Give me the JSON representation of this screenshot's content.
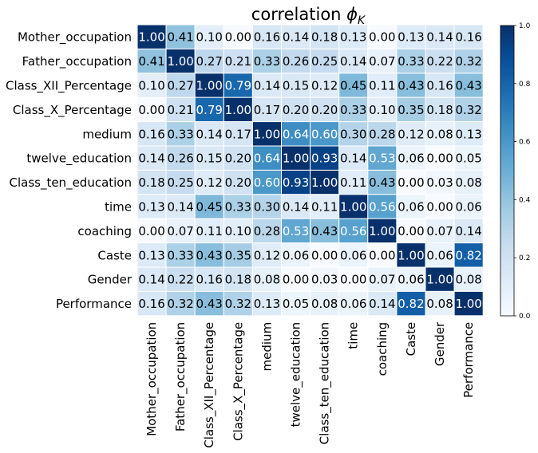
{
  "chart_data": {
    "type": "heatmap",
    "title_main": "correlation ",
    "title_symbol": "ϕ",
    "title_subscript": "K",
    "row_labels": [
      "Mother_occupation",
      "Father_occupation",
      "Class_XII_Percentage",
      "Class_X_Percentage",
      "medium",
      "twelve_education",
      "Class_ten_education",
      "time",
      "coaching",
      "Caste",
      "Gender",
      "Performance"
    ],
    "col_labels": [
      "Mother_occupation",
      "Father_occupation",
      "Class_XII_Percentage",
      "Class_X_Percentage",
      "medium",
      "twelve_education",
      "Class_ten_education",
      "time",
      "coaching",
      "Caste",
      "Gender",
      "Performance"
    ],
    "values": [
      [
        1.0,
        0.41,
        0.1,
        0.0,
        0.16,
        0.14,
        0.18,
        0.13,
        0.0,
        0.13,
        0.14,
        0.16
      ],
      [
        0.41,
        1.0,
        0.27,
        0.21,
        0.33,
        0.26,
        0.25,
        0.14,
        0.07,
        0.33,
        0.22,
        0.32
      ],
      [
        0.1,
        0.27,
        1.0,
        0.79,
        0.14,
        0.15,
        0.12,
        0.45,
        0.11,
        0.43,
        0.16,
        0.43
      ],
      [
        0.0,
        0.21,
        0.79,
        1.0,
        0.17,
        0.2,
        0.2,
        0.33,
        0.1,
        0.35,
        0.18,
        0.32
      ],
      [
        0.16,
        0.33,
        0.14,
        0.17,
        1.0,
        0.64,
        0.6,
        0.3,
        0.28,
        0.12,
        0.08,
        0.13
      ],
      [
        0.14,
        0.26,
        0.15,
        0.2,
        0.64,
        1.0,
        0.93,
        0.14,
        0.53,
        0.06,
        0.0,
        0.05
      ],
      [
        0.18,
        0.25,
        0.12,
        0.2,
        0.6,
        0.93,
        1.0,
        0.11,
        0.43,
        0.0,
        0.03,
        0.08
      ],
      [
        0.13,
        0.14,
        0.45,
        0.33,
        0.3,
        0.14,
        0.11,
        1.0,
        0.56,
        0.06,
        0.0,
        0.06
      ],
      [
        0.0,
        0.07,
        0.11,
        0.1,
        0.28,
        0.53,
        0.43,
        0.56,
        1.0,
        0.0,
        0.07,
        0.14
      ],
      [
        0.13,
        0.33,
        0.43,
        0.35,
        0.12,
        0.06,
        0.0,
        0.06,
        0.0,
        1.0,
        0.06,
        0.82
      ],
      [
        0.14,
        0.22,
        0.16,
        0.18,
        0.08,
        0.0,
        0.03,
        0.0,
        0.07,
        0.06,
        1.0,
        0.08
      ],
      [
        0.16,
        0.32,
        0.43,
        0.32,
        0.13,
        0.05,
        0.08,
        0.06,
        0.14,
        0.82,
        0.08,
        1.0
      ]
    ],
    "value_range": [
      0,
      1
    ],
    "colormap": "Blues",
    "colorbar_ticks": [
      "0.0",
      "0.2",
      "0.4",
      "0.6",
      "0.8",
      "1.0"
    ],
    "colorbar_tick_values": [
      0,
      0.2,
      0.4,
      0.6,
      0.8,
      1.0
    ],
    "grid": true,
    "grid_color": "#ffffff"
  }
}
